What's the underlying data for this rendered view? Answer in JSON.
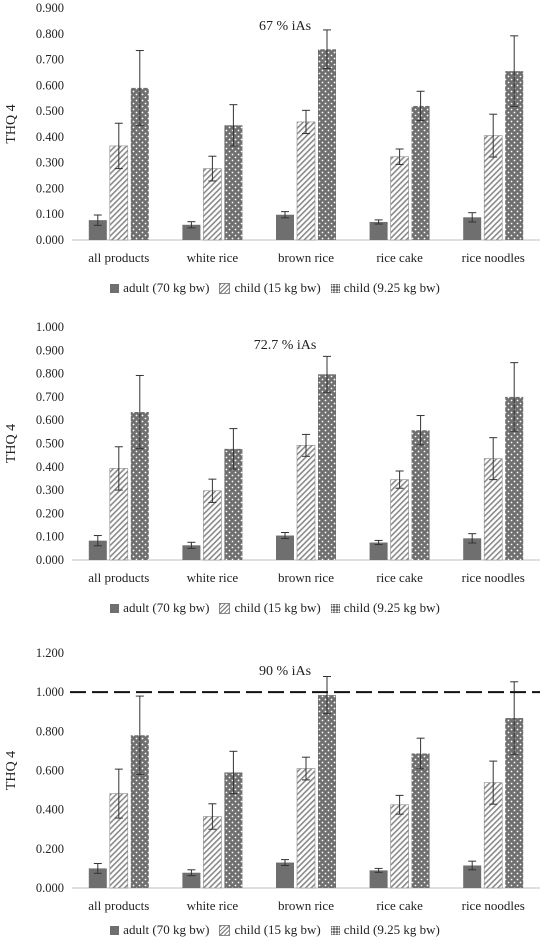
{
  "legend": {
    "adult": "adult (70 kg bw)",
    "child15": "child (15 kg bw)",
    "child925": "child (9.25 kg bw)"
  },
  "colors": {
    "bar": "#6f6f6f",
    "axis": "#bfbfbf",
    "errorbar": "#333333"
  },
  "chart_data": [
    {
      "type": "bar",
      "title": "67 % iAs",
      "ylabel": "THQ  4",
      "ylim": [
        0,
        0.9
      ],
      "yticks": [
        "0.000",
        "0.100",
        "0.200",
        "0.300",
        "0.400",
        "0.500",
        "0.600",
        "0.700",
        "0.800",
        "0.900"
      ],
      "categories": [
        "all products",
        "white rice",
        "brown rice",
        "rice cake",
        "rice noodles"
      ],
      "series": [
        {
          "name": "adult (70 kg bw)",
          "values": [
            0.077,
            0.059,
            0.098,
            0.07,
            0.088
          ],
          "errors": [
            0.02,
            0.012,
            0.012,
            0.008,
            0.018
          ]
        },
        {
          "name": "child (15 kg bw)",
          "values": [
            0.365,
            0.277,
            0.458,
            0.323,
            0.405
          ],
          "errors": [
            0.088,
            0.048,
            0.045,
            0.03,
            0.083
          ]
        },
        {
          "name": "child (9.25 kg bw)",
          "values": [
            0.59,
            0.445,
            0.74,
            0.52,
            0.655
          ],
          "errors": [
            0.145,
            0.08,
            0.075,
            0.057,
            0.137
          ]
        }
      ]
    },
    {
      "type": "bar",
      "title": "72.7 % iAs",
      "ylabel": "THQ  4",
      "ylim": [
        0,
        1.0
      ],
      "yticks": [
        "0.000",
        "0.100",
        "0.200",
        "0.300",
        "0.400",
        "0.500",
        "0.600",
        "0.700",
        "0.800",
        "0.900",
        "1.000"
      ],
      "categories": [
        "all products",
        "white rice",
        "brown rice",
        "rice cake",
        "rice noodles"
      ],
      "series": [
        {
          "name": "adult (70 kg bw)",
          "values": [
            0.083,
            0.063,
            0.105,
            0.075,
            0.093
          ],
          "errors": [
            0.022,
            0.013,
            0.013,
            0.009,
            0.02
          ]
        },
        {
          "name": "child (15 kg bw)",
          "values": [
            0.393,
            0.297,
            0.492,
            0.345,
            0.435
          ],
          "errors": [
            0.093,
            0.05,
            0.047,
            0.037,
            0.09
          ]
        },
        {
          "name": "child (9.25 kg bw)",
          "values": [
            0.635,
            0.477,
            0.797,
            0.557,
            0.7
          ],
          "errors": [
            0.157,
            0.087,
            0.077,
            0.063,
            0.147
          ]
        }
      ]
    },
    {
      "type": "bar",
      "title": "90 % iAs",
      "ylabel": "THQ  4",
      "ylim": [
        0,
        1.2
      ],
      "yticks": [
        "0.000",
        "0.200",
        "0.400",
        "0.600",
        "0.800",
        "1.000",
        "1.200"
      ],
      "reference_line": 1.0,
      "categories": [
        "all products",
        "white rice",
        "brown rice",
        "rice cake",
        "rice noodles"
      ],
      "series": [
        {
          "name": "adult (70 kg bw)",
          "values": [
            0.1,
            0.078,
            0.13,
            0.09,
            0.115
          ],
          "errors": [
            0.025,
            0.015,
            0.015,
            0.01,
            0.022
          ]
        },
        {
          "name": "child (15 kg bw)",
          "values": [
            0.482,
            0.365,
            0.61,
            0.425,
            0.538
          ],
          "errors": [
            0.125,
            0.065,
            0.058,
            0.048,
            0.11
          ]
        },
        {
          "name": "child (9.25 kg bw)",
          "values": [
            0.78,
            0.59,
            0.985,
            0.687,
            0.868
          ],
          "errors": [
            0.2,
            0.108,
            0.095,
            0.078,
            0.185
          ]
        }
      ]
    }
  ]
}
